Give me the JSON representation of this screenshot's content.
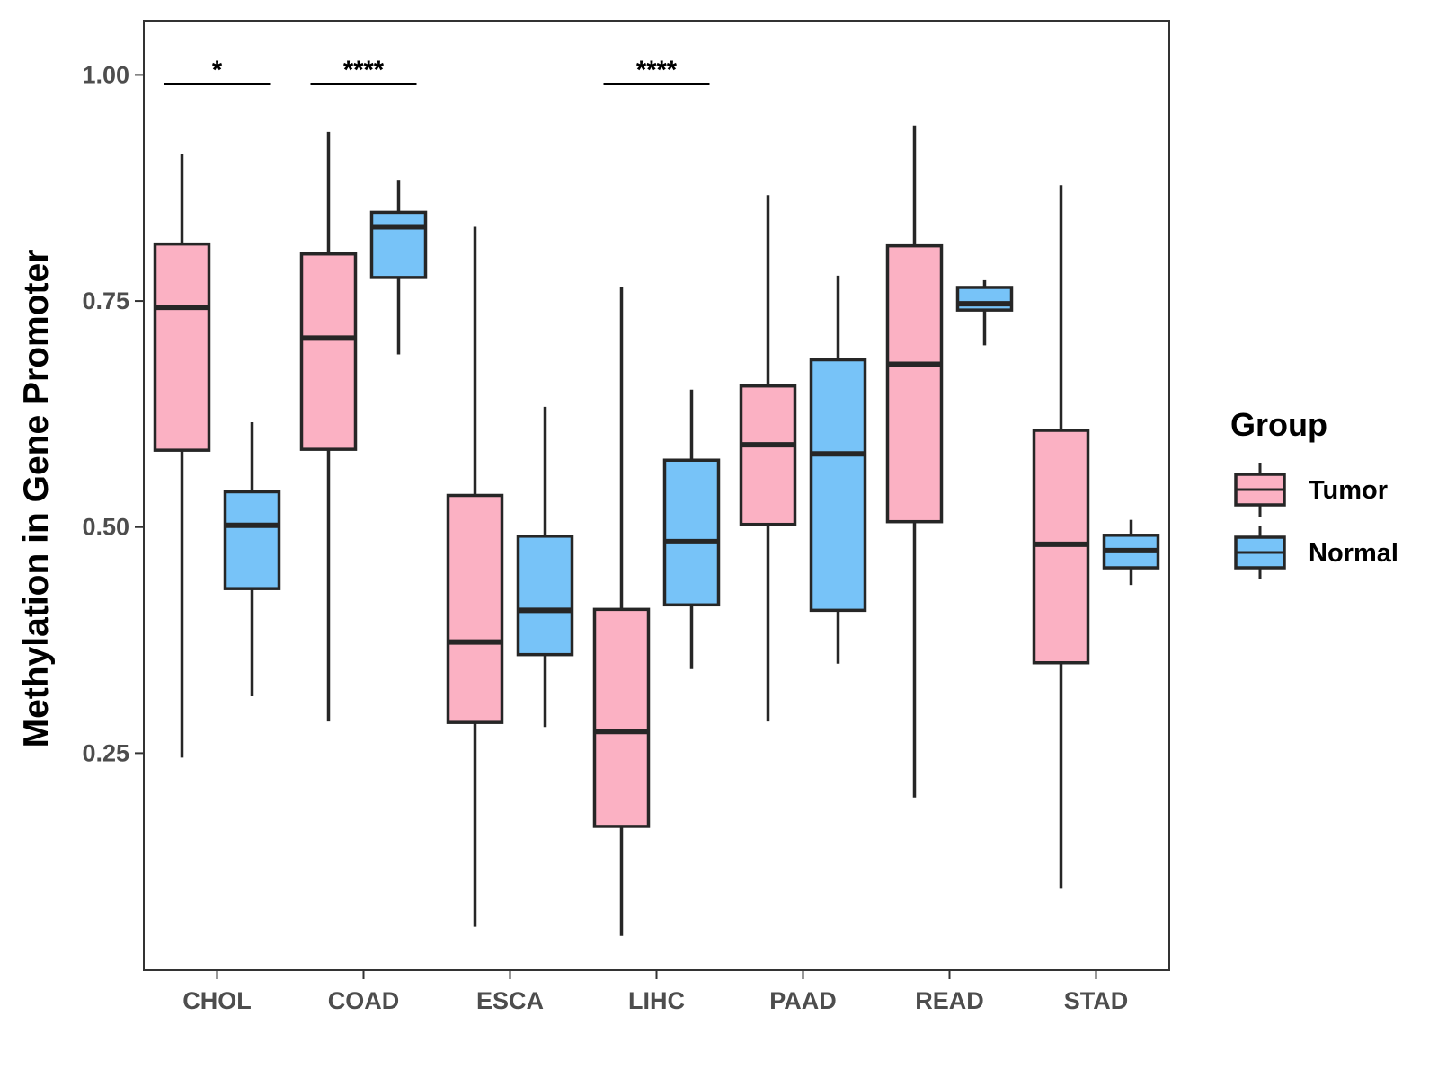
{
  "chart_data": {
    "type": "boxplot",
    "title": "",
    "xlabel": "",
    "ylabel": "Methylation in Gene Promoter",
    "ylim": [
      0.01,
      1.06
    ],
    "yticks": [
      0.25,
      0.5,
      0.75,
      1.0
    ],
    "ytick_labels": [
      "0.25",
      "0.50",
      "0.75",
      "1.00"
    ],
    "categories": [
      "CHOL",
      "COAD",
      "ESCA",
      "LIHC",
      "PAAD",
      "READ",
      "STAD"
    ],
    "legend": {
      "title": "Group",
      "position": "right",
      "entries": [
        "Tumor",
        "Normal"
      ]
    },
    "colors": {
      "Tumor": "#fbb1c3",
      "Normal": "#77c3f8",
      "line": "#262626"
    },
    "series": [
      {
        "name": "Tumor",
        "boxes": [
          {
            "category": "CHOL",
            "whisker_low": 0.245,
            "q1": 0.585,
            "median": 0.743,
            "q3": 0.813,
            "whisker_high": 0.913
          },
          {
            "category": "COAD",
            "whisker_low": 0.285,
            "q1": 0.586,
            "median": 0.709,
            "q3": 0.802,
            "whisker_high": 0.937
          },
          {
            "category": "ESCA",
            "whisker_low": 0.058,
            "q1": 0.284,
            "median": 0.373,
            "q3": 0.535,
            "whisker_high": 0.832
          },
          {
            "category": "LIHC",
            "whisker_low": 0.048,
            "q1": 0.169,
            "median": 0.274,
            "q3": 0.409,
            "whisker_high": 0.765
          },
          {
            "category": "PAAD",
            "whisker_low": 0.285,
            "q1": 0.503,
            "median": 0.591,
            "q3": 0.656,
            "whisker_high": 0.867
          },
          {
            "category": "READ",
            "whisker_low": 0.201,
            "q1": 0.506,
            "median": 0.68,
            "q3": 0.811,
            "whisker_high": 0.944
          },
          {
            "category": "STAD",
            "whisker_low": 0.1,
            "q1": 0.35,
            "median": 0.481,
            "q3": 0.607,
            "whisker_high": 0.878
          }
        ]
      },
      {
        "name": "Normal",
        "boxes": [
          {
            "category": "CHOL",
            "whisker_low": 0.313,
            "q1": 0.432,
            "median": 0.502,
            "q3": 0.539,
            "whisker_high": 0.616
          },
          {
            "category": "COAD",
            "whisker_low": 0.691,
            "q1": 0.776,
            "median": 0.832,
            "q3": 0.848,
            "whisker_high": 0.884
          },
          {
            "category": "ESCA",
            "whisker_low": 0.279,
            "q1": 0.359,
            "median": 0.408,
            "q3": 0.49,
            "whisker_high": 0.633
          },
          {
            "category": "LIHC",
            "whisker_low": 0.343,
            "q1": 0.414,
            "median": 0.484,
            "q3": 0.574,
            "whisker_high": 0.652
          },
          {
            "category": "PAAD",
            "whisker_low": 0.349,
            "q1": 0.408,
            "median": 0.581,
            "q3": 0.685,
            "whisker_high": 0.778
          },
          {
            "category": "READ",
            "whisker_low": 0.701,
            "q1": 0.74,
            "median": 0.747,
            "q3": 0.765,
            "whisker_high": 0.773
          },
          {
            "category": "STAD",
            "whisker_low": 0.436,
            "q1": 0.455,
            "median": 0.474,
            "q3": 0.491,
            "whisker_high": 0.508
          }
        ]
      }
    ],
    "annotations": [
      {
        "category": "CHOL",
        "label": "*",
        "y": 0.99
      },
      {
        "category": "COAD",
        "label": "****",
        "y": 0.99
      },
      {
        "category": "LIHC",
        "label": "****",
        "y": 0.99
      }
    ]
  }
}
